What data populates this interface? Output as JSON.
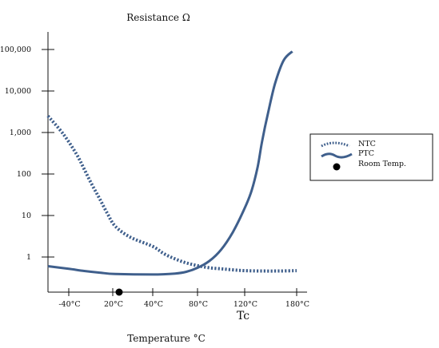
{
  "chart_data": {
    "type": "line",
    "title": "Resistance Ω",
    "xlabel": "Temperature  °C",
    "ylabel": "",
    "x_ticks": [
      "-40°C",
      "20°C",
      "40°C",
      "80°C",
      "120°C",
      "180°C"
    ],
    "y_ticks": [
      "1",
      "10",
      "100",
      "1,000",
      "10,000",
      "100,000"
    ],
    "y_scale": "log",
    "x_marker_label": "Tc",
    "room_temp_x": 25,
    "line_color": "#3f5f8c",
    "legend_position": "right",
    "series": [
      {
        "name": "NTC",
        "style": "dotted",
        "points": [
          [
            -60,
            2500
          ],
          [
            -45,
            900
          ],
          [
            -30,
            300
          ],
          [
            -20,
            130
          ],
          [
            -10,
            55
          ],
          [
            0,
            25
          ],
          [
            10,
            11
          ],
          [
            20,
            5.5
          ],
          [
            30,
            3
          ],
          [
            40,
            1.8
          ],
          [
            50,
            1.2
          ],
          [
            60,
            0.9
          ],
          [
            70,
            0.72
          ],
          [
            80,
            0.62
          ],
          [
            90,
            0.55
          ],
          [
            100,
            0.52
          ],
          [
            110,
            0.49
          ],
          [
            120,
            0.47
          ],
          [
            140,
            0.46
          ],
          [
            160,
            0.46
          ],
          [
            180,
            0.47
          ]
        ]
      },
      {
        "name": "PTC",
        "style": "solid",
        "points": [
          [
            -60,
            0.6
          ],
          [
            -40,
            0.52
          ],
          [
            -20,
            0.46
          ],
          [
            0,
            0.42
          ],
          [
            20,
            0.39
          ],
          [
            40,
            0.38
          ],
          [
            60,
            0.4
          ],
          [
            70,
            0.44
          ],
          [
            80,
            0.55
          ],
          [
            90,
            0.8
          ],
          [
            100,
            1.5
          ],
          [
            110,
            4
          ],
          [
            120,
            15
          ],
          [
            128,
            40
          ],
          [
            135,
            150
          ],
          [
            140,
            600
          ],
          [
            147,
            3000
          ],
          [
            155,
            15000
          ],
          [
            165,
            55000
          ],
          [
            175,
            90000
          ]
        ]
      }
    ]
  },
  "legend": {
    "items": [
      "NTC",
      "PTC",
      "Room Temp."
    ]
  }
}
